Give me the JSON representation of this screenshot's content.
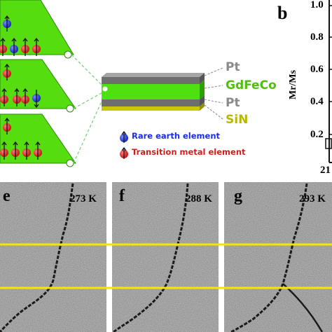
{
  "layers": [
    {
      "label": "Pt",
      "color": "#8a8a8a"
    },
    {
      "label": "GdFeCo",
      "color": "#4fbf0a"
    },
    {
      "label": "Pt",
      "color": "#8a8a8a"
    },
    {
      "label": "SiN",
      "color": "#b8b800"
    }
  ],
  "legend": [
    {
      "label": "Rare earth element",
      "color": "#1c2fe0"
    },
    {
      "label": "Transition metal element",
      "color": "#e01818"
    }
  ],
  "panel_b": {
    "letter": "b",
    "ylabel": "Mr/Ms",
    "yticks": [
      "1.0",
      "0.8",
      "0.6",
      "0.4",
      "0.2"
    ],
    "x_tick_partial": "21"
  },
  "images": [
    {
      "letter": "e",
      "temperature": "273 K"
    },
    {
      "letter": "f",
      "temperature": "288 K"
    },
    {
      "letter": "g",
      "temperature": "293 K"
    }
  ],
  "colors": {
    "film_green": "#4fe00f",
    "guide_yellow": "#f5e600",
    "dashed_guide": "#7ad07a"
  }
}
